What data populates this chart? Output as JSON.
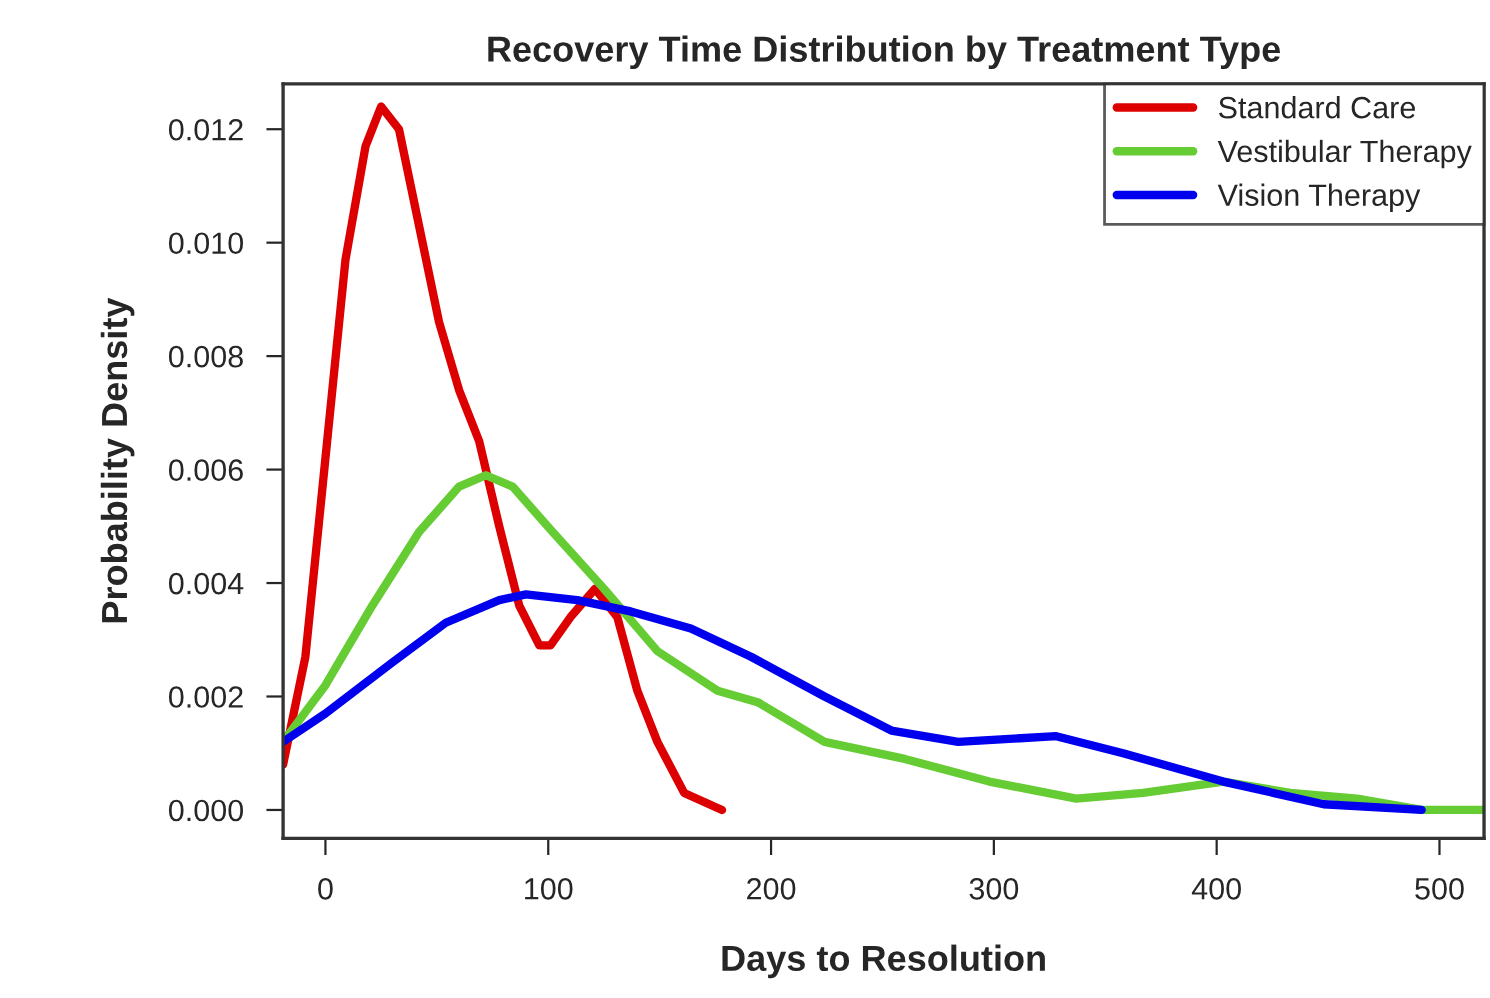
{
  "chart_data": {
    "type": "line",
    "title": "Recovery Time Distribution by Treatment Type",
    "xlabel": "Days to Resolution",
    "ylabel": "Probability Density",
    "xlim": [
      -19,
      520
    ],
    "ylim": [
      -0.0005,
      0.0128
    ],
    "xticks": [
      0,
      100,
      200,
      300,
      400,
      500
    ],
    "yticks": [
      {
        "value": 0,
        "label": "0.000"
      },
      {
        "value": 0.002,
        "label": "0.002"
      },
      {
        "value": 0.004,
        "label": "0.004"
      },
      {
        "value": 0.006,
        "label": "0.006"
      },
      {
        "value": 0.008,
        "label": "0.008"
      },
      {
        "value": 0.01,
        "label": "0.010"
      },
      {
        "value": 0.012,
        "label": "0.012"
      }
    ],
    "grid": false,
    "legend": "top right",
    "marker": "none",
    "line_style": "solid",
    "series": [
      {
        "name": "Standard Care",
        "color": "#dd0000",
        "x": [
          -19,
          -9,
          0,
          9,
          18,
          25,
          33,
          42,
          51,
          60,
          69,
          78,
          87,
          96,
          101,
          110,
          121,
          131,
          140,
          149,
          161,
          178
        ],
        "values": [
          0.0008,
          0.0027,
          0.0062,
          0.0097,
          0.0117,
          0.0124,
          0.012,
          0.0103,
          0.0086,
          0.0074,
          0.0065,
          0.005,
          0.0036,
          0.0029,
          0.0029,
          0.0034,
          0.0039,
          0.0034,
          0.0021,
          0.0012,
          0.0003,
          0.0
        ]
      },
      {
        "name": "Vestibular Therapy",
        "color": "#66cc33",
        "x": [
          -19,
          0,
          21,
          42,
          60,
          72,
          84,
          102,
          125,
          149,
          176,
          194,
          224,
          260,
          298,
          337,
          367,
          403,
          433,
          463,
          492,
          520
        ],
        "values": [
          0.0012,
          0.0022,
          0.0036,
          0.0049,
          0.0057,
          0.0059,
          0.0057,
          0.0049,
          0.0039,
          0.0028,
          0.0021,
          0.0019,
          0.0012,
          0.0009,
          0.0005,
          0.0002,
          0.0003,
          0.0005,
          0.0003,
          0.0002,
          0.0,
          0.0
        ]
      },
      {
        "name": "Vision Therapy",
        "color": "#0000ee",
        "x": [
          -19,
          0,
          30,
          54,
          78,
          90,
          113,
          137,
          164,
          191,
          224,
          254,
          284,
          328,
          358,
          403,
          448,
          492
        ],
        "values": [
          0.0012,
          0.0017,
          0.0026,
          0.0033,
          0.0037,
          0.0038,
          0.0037,
          0.0035,
          0.0032,
          0.0027,
          0.002,
          0.0014,
          0.0012,
          0.0013,
          0.001,
          0.0005,
          0.0001,
          0.0
        ]
      }
    ]
  }
}
